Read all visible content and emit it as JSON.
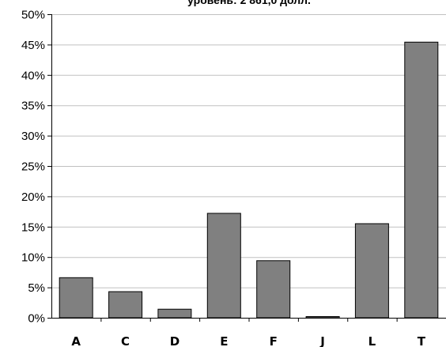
{
  "chart_data": {
    "type": "bar",
    "title": "уровень:  2 861,0 долл.",
    "xlabel": "",
    "ylabel": "",
    "categories": [
      "A",
      "C",
      "D",
      "E",
      "F",
      "J",
      "L",
      "T"
    ],
    "values": [
      6.6,
      4.3,
      1.4,
      17.2,
      9.4,
      0.2,
      15.5,
      45.4
    ],
    "ylim": [
      0,
      50
    ],
    "y_ticks": [
      0,
      5,
      10,
      15,
      20,
      25,
      30,
      35,
      40,
      45,
      50
    ],
    "y_tick_labels": [
      "0%",
      "5%",
      "10%",
      "15%",
      "20%",
      "25%",
      "30%",
      "35%",
      "40%",
      "45%",
      "50%"
    ],
    "grid": true,
    "legend": "none",
    "colors": {
      "bar_fill": "#808080",
      "bar_stroke": "#000000",
      "grid": "#c0c0c0",
      "axis": "#000000"
    }
  }
}
